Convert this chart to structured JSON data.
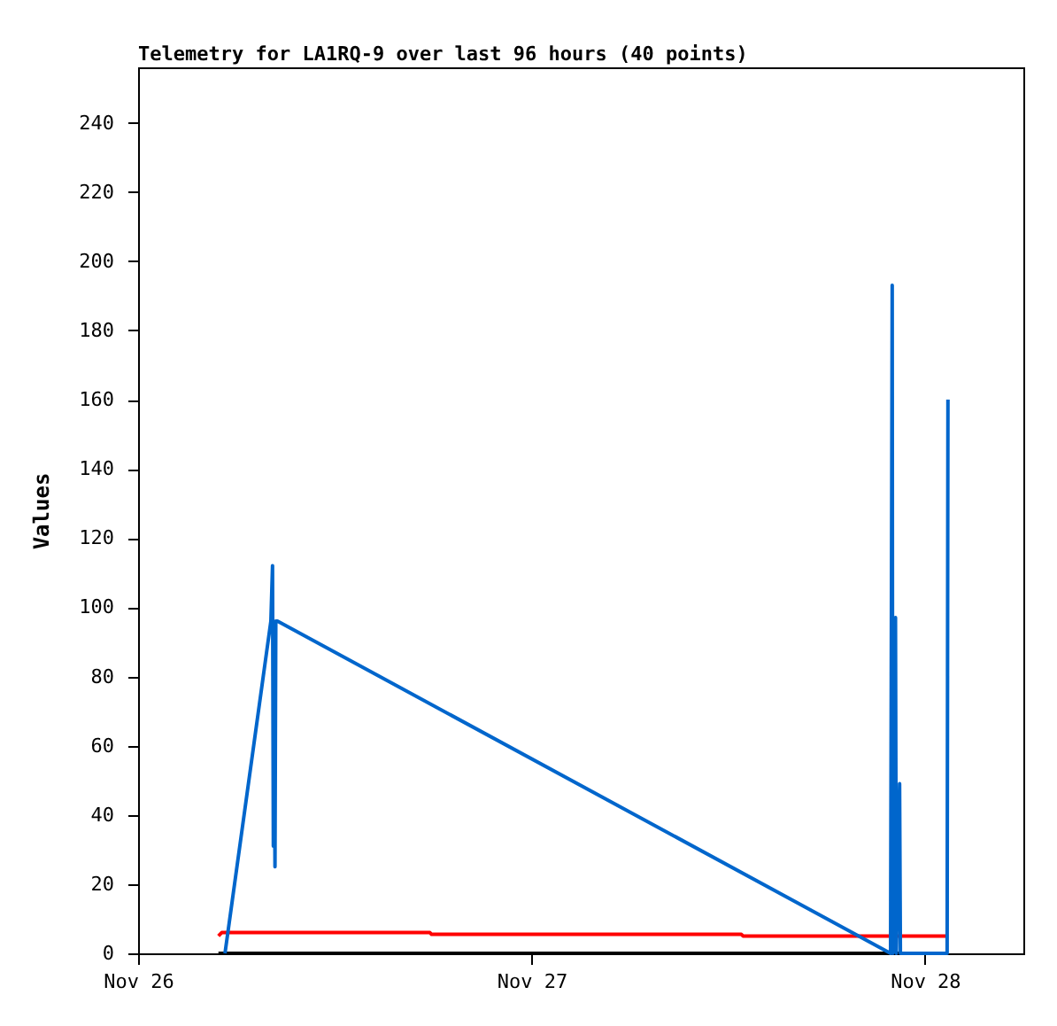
{
  "chart_data": {
    "type": "line",
    "title": "Telemetry for LA1RQ-9 over last 96 hours (40 points)",
    "ylabel": "Values",
    "xlim": [
      "--11-26",
      "--11-28T06:00"
    ],
    "xticks": [
      {
        "value": "--11-26",
        "label": "Nov 26"
      },
      {
        "value": "--11-27",
        "label": "Nov 27"
      },
      {
        "value": "--11-28",
        "label": "Nov 28"
      }
    ],
    "ylim": [
      0,
      256
    ],
    "yticks": [
      0,
      20,
      40,
      60,
      80,
      100,
      120,
      140,
      160,
      180,
      200,
      220,
      240
    ],
    "grid": false,
    "legend": false,
    "marker": "none",
    "line_style": "solid",
    "series": [
      {
        "color": "#ff0000",
        "x": [
          "--11-26T04:54",
          "--11-26T05:06",
          "--11-26T17:48",
          "--11-26T17:54",
          "--11-27T12:48",
          "--11-27T12:54",
          "--11-28T01:24"
        ],
        "values": [
          5,
          6,
          6,
          5.5,
          5.5,
          5,
          5
        ]
      },
      {
        "color": "#000000",
        "x": [
          "--11-26T04:54",
          "--11-28T01:24"
        ],
        "values": [
          0,
          0
        ]
      },
      {
        "color": "#0066cc",
        "x": [
          "--11-26T05:18",
          "--11-26T08:06",
          "--11-26T08:12",
          "--11-26T08:15",
          "--11-26T08:18",
          "--11-26T08:21",
          "--11-26T08:24",
          "--11-26T08:30",
          "--11-27T21:54",
          "--11-27T22:00",
          "--11-27T22:02",
          "--11-27T22:12",
          "--11-27T22:15",
          "--11-27T22:27",
          "--11-27T22:30",
          "--11-28T01:21",
          "--11-28T01:24"
        ],
        "values": [
          0,
          96,
          112,
          31,
          72,
          25,
          96,
          96,
          0,
          193,
          0,
          97,
          0,
          49,
          0,
          0,
          160
        ]
      }
    ]
  }
}
